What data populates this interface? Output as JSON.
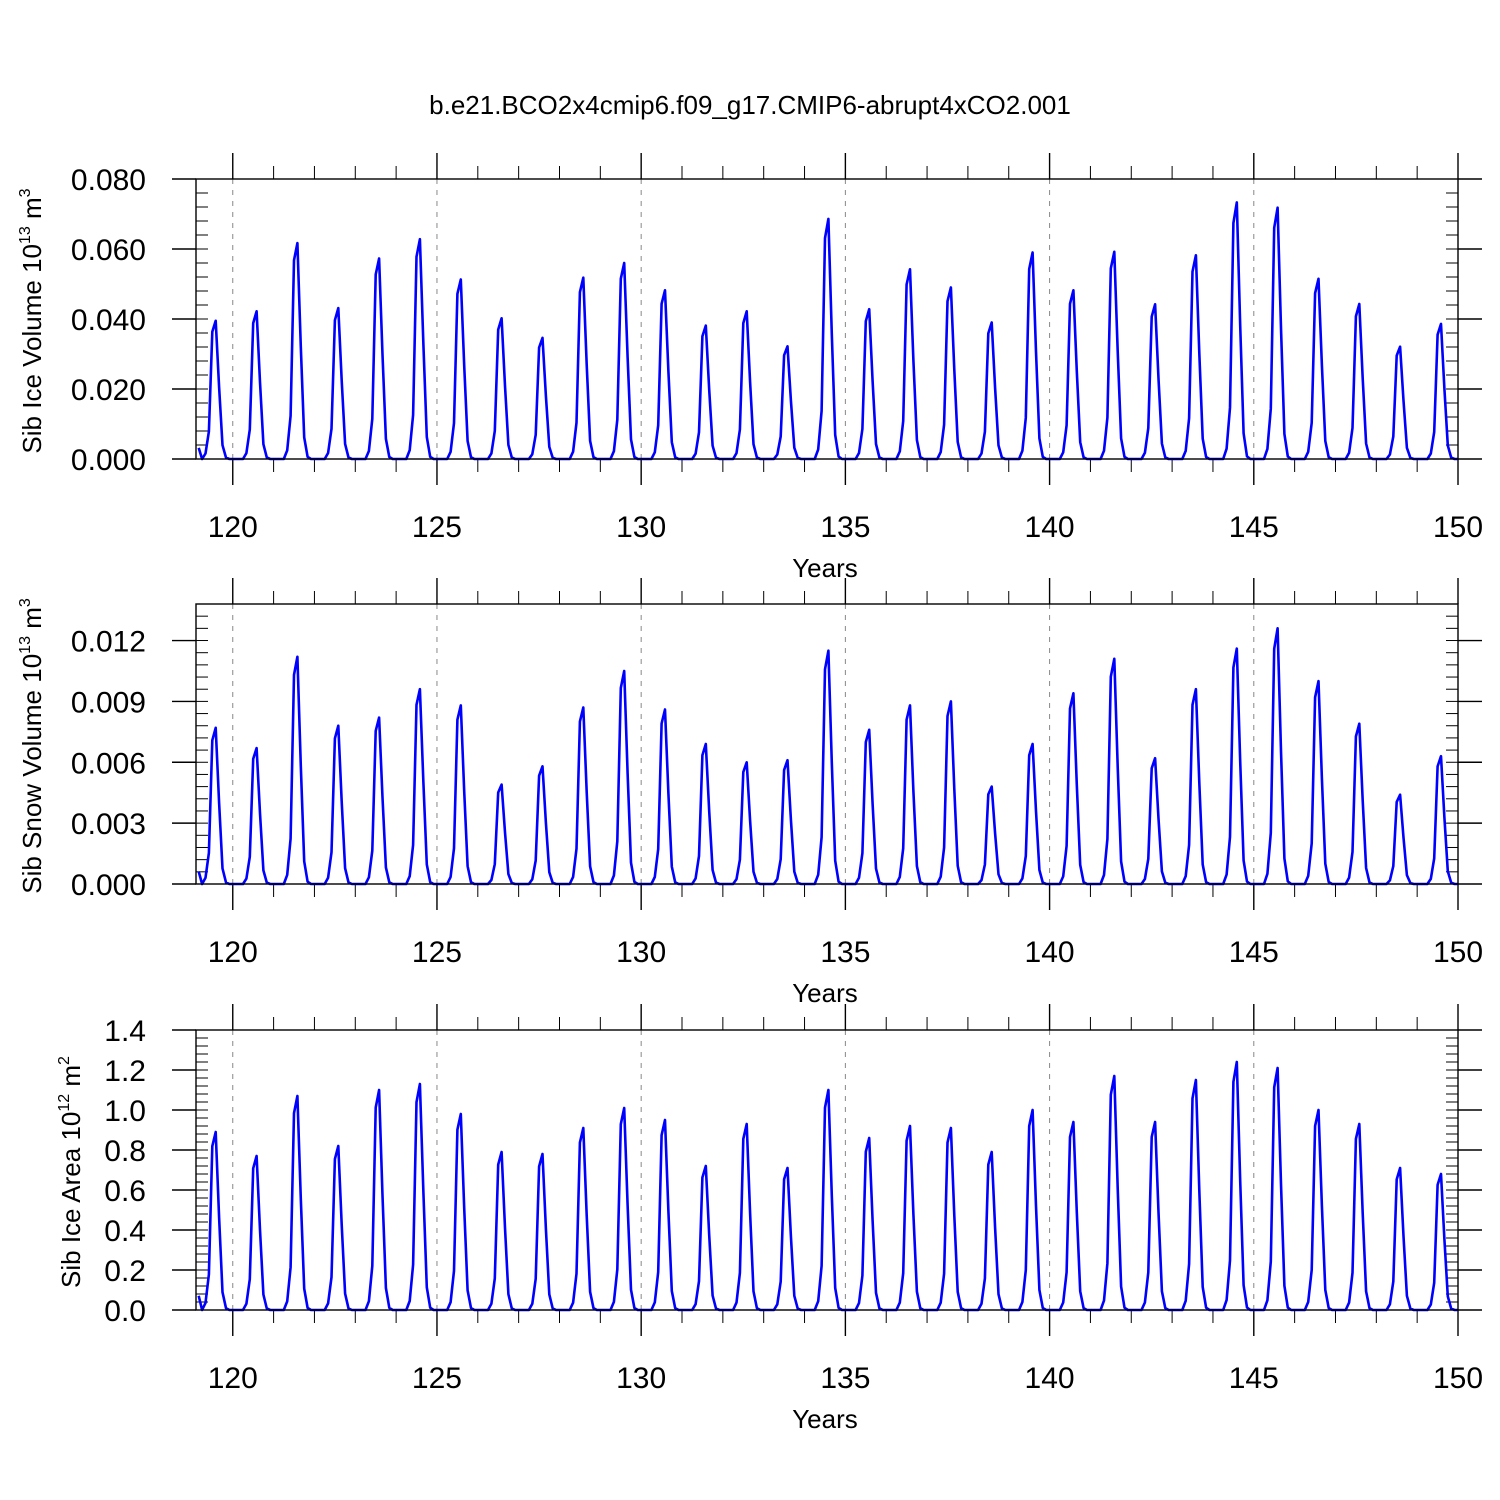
{
  "title": "b.e21.BCO2x4cmip6.f09_g17.CMIP6-abrupt4xCO2.001",
  "line_color": "#0000ff",
  "chart_data": [
    {
      "type": "line",
      "xlabel": "Years",
      "ylabel": {
        "text": "Sib Ice Volume 10",
        "exp": "13",
        "unit": " m",
        "unit_exp": "3"
      },
      "xlim": [
        119.1,
        150
      ],
      "ylim": [
        0,
        0.08
      ],
      "x_ticks": [
        120,
        125,
        130,
        135,
        140,
        145,
        150
      ],
      "y_ticks": [
        0,
        0.02,
        0.04,
        0.06,
        0.08
      ],
      "y_tick_labels": [
        "0.000",
        "0.020",
        "0.040",
        "0.060",
        "0.080"
      ],
      "y_minor_step": 0.004,
      "grid_x": [
        120,
        125,
        130,
        135,
        140,
        145
      ],
      "start_year": 119,
      "annual_peaks": [
        0.0395,
        0.0422,
        0.0617,
        0.0431,
        0.0573,
        0.0628,
        0.0513,
        0.0402,
        0.0346,
        0.0518,
        0.056,
        0.0482,
        0.0381,
        0.0422,
        0.0322,
        0.0686,
        0.0428,
        0.0542,
        0.049,
        0.039,
        0.059,
        0.0482,
        0.0592,
        0.0442,
        0.0582,
        0.0733,
        0.0718,
        0.0515,
        0.0443,
        0.0321,
        0.0386
      ]
    },
    {
      "type": "line",
      "xlabel": "Years",
      "ylabel": {
        "text": "Sib Snow Volume 10",
        "exp": "13",
        "unit": " m",
        "unit_exp": "3"
      },
      "xlim": [
        119.1,
        150
      ],
      "ylim": [
        0,
        0.0138
      ],
      "x_ticks": [
        120,
        125,
        130,
        135,
        140,
        145,
        150
      ],
      "y_ticks": [
        0,
        0.003,
        0.006,
        0.009,
        0.012
      ],
      "y_tick_labels": [
        "0.000",
        "0.003",
        "0.006",
        "0.009",
        "0.012"
      ],
      "y_minor_step": 0.0006,
      "grid_x": [
        120,
        125,
        130,
        135,
        140,
        145
      ],
      "start_year": 119,
      "annual_peaks": [
        0.0077,
        0.0067,
        0.0112,
        0.0078,
        0.0082,
        0.0096,
        0.0088,
        0.0049,
        0.0058,
        0.0087,
        0.0105,
        0.0086,
        0.0069,
        0.006,
        0.0061,
        0.0115,
        0.0076,
        0.0088,
        0.009,
        0.0048,
        0.0069,
        0.0094,
        0.0111,
        0.0062,
        0.0096,
        0.0116,
        0.0126,
        0.01,
        0.0079,
        0.0044,
        0.0063
      ]
    },
    {
      "type": "line",
      "xlabel": "Years",
      "ylabel": {
        "text": "Sib Ice Area 10",
        "exp": "12",
        "unit": " m",
        "unit_exp": "2"
      },
      "xlim": [
        119.1,
        150
      ],
      "ylim": [
        0,
        1.4
      ],
      "x_ticks": [
        120,
        125,
        130,
        135,
        140,
        145,
        150
      ],
      "y_ticks": [
        0,
        0.2,
        0.4,
        0.6,
        0.8,
        1.0,
        1.2,
        1.4
      ],
      "y_tick_labels": [
        "0.0",
        "0.2",
        "0.4",
        "0.6",
        "0.8",
        "1.0",
        "1.2",
        "1.4"
      ],
      "y_minor_step": 0.04,
      "grid_x": [
        120,
        125,
        130,
        135,
        140,
        145
      ],
      "start_year": 119,
      "annual_peaks": [
        0.89,
        0.77,
        1.07,
        0.82,
        1.1,
        1.13,
        0.98,
        0.79,
        0.78,
        0.91,
        1.01,
        0.95,
        0.72,
        0.93,
        0.71,
        1.1,
        0.86,
        0.92,
        0.91,
        0.79,
        1.0,
        0.94,
        1.17,
        0.94,
        1.15,
        1.24,
        1.21,
        1.0,
        0.93,
        0.71,
        0.68
      ]
    }
  ]
}
